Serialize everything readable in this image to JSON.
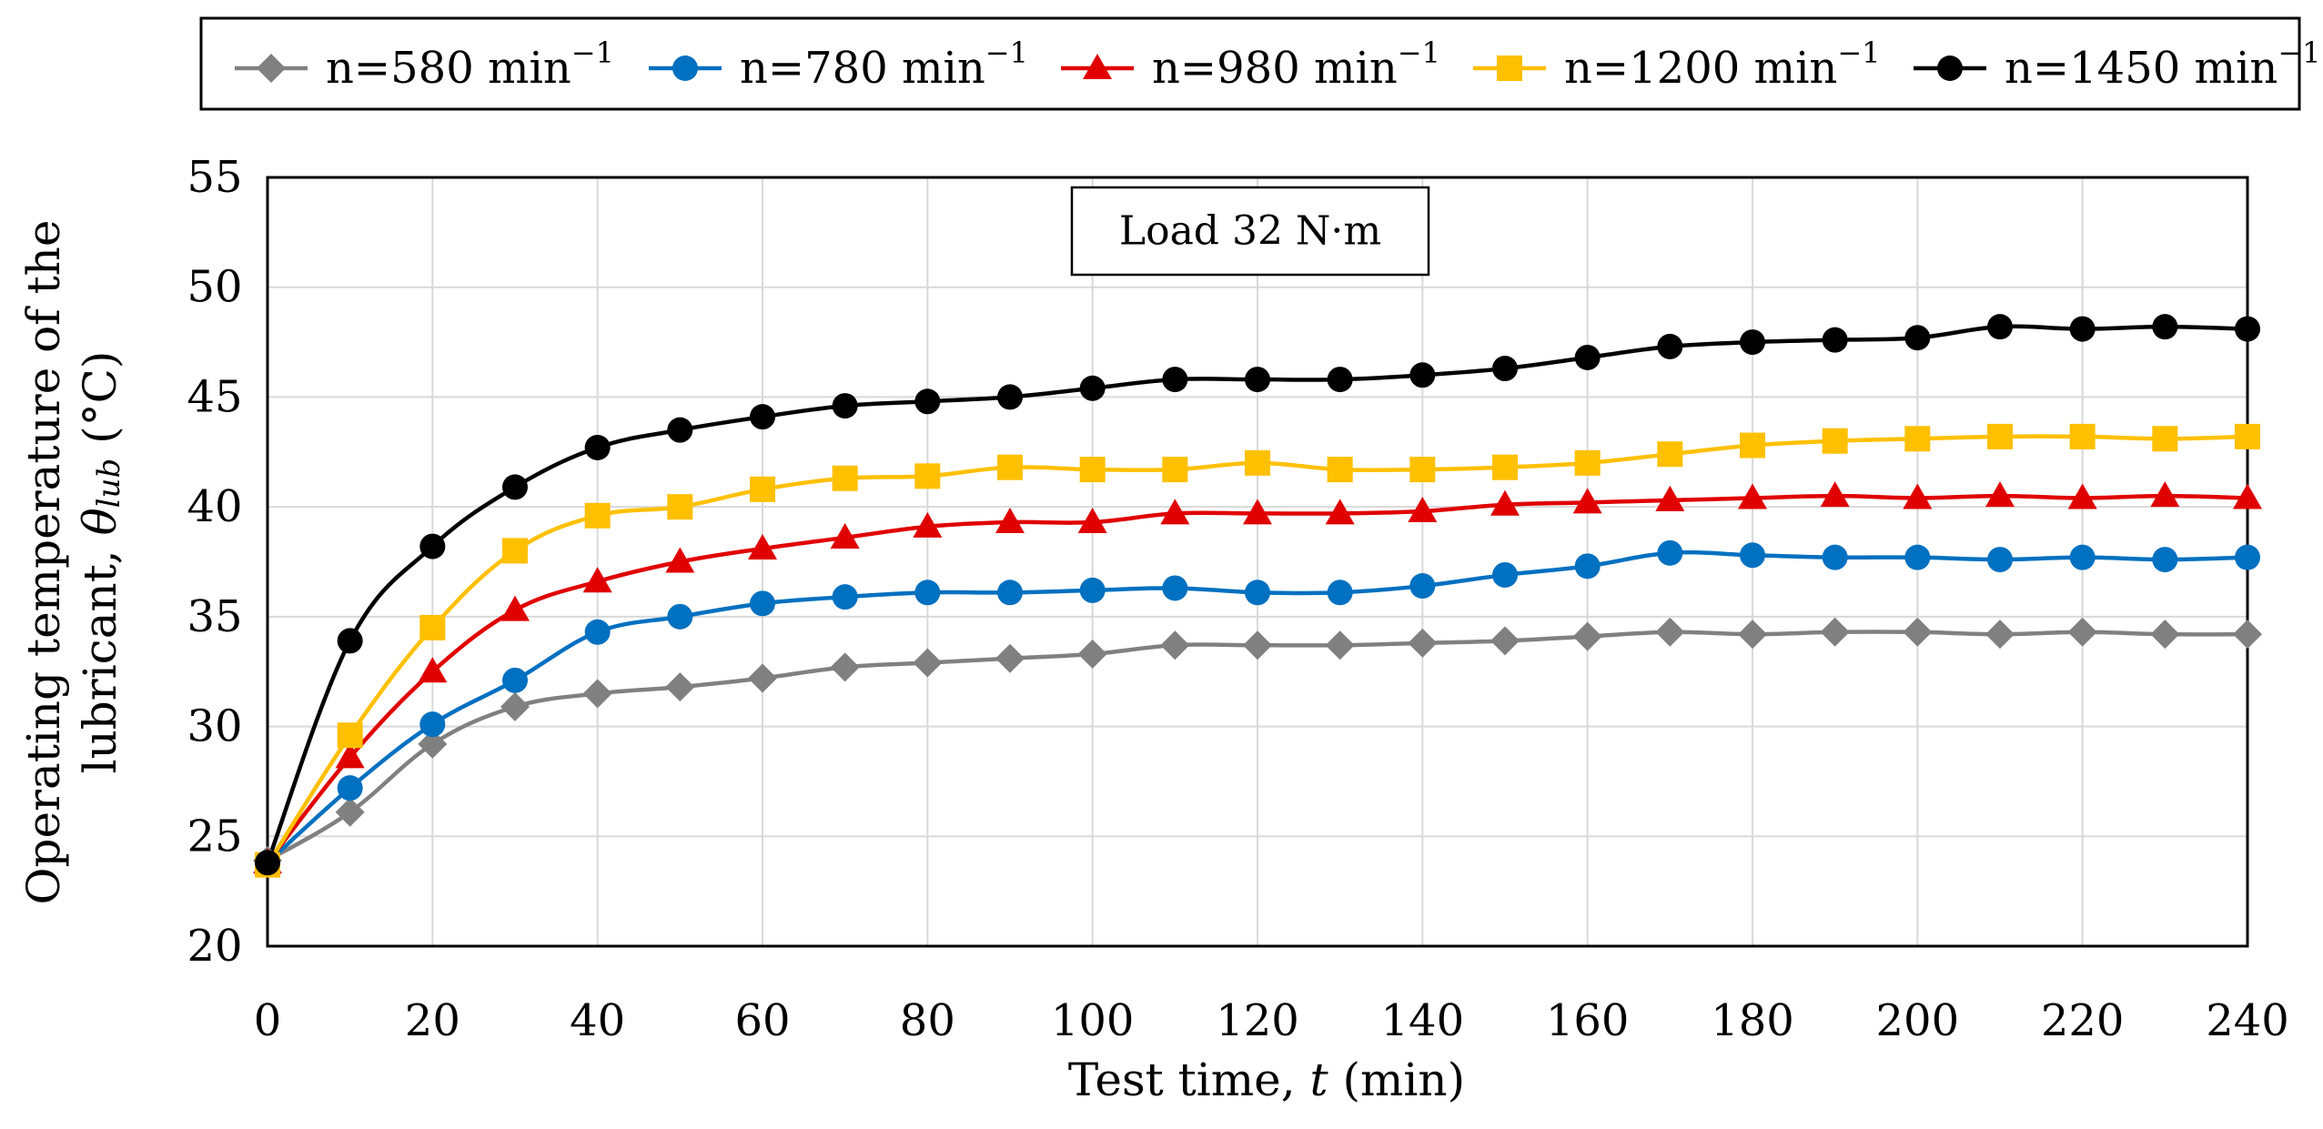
{
  "chart_data": {
    "type": "line",
    "annotation": "Load 32 N·m",
    "xlabel": {
      "prefix": "Test time, ",
      "italic": "t",
      "suffix": " (min)"
    },
    "ylabel": {
      "line1": "Operating temperature of the",
      "line2_prefix": "lubricant, ",
      "line2_symbol": "θ",
      "line2_subscript": "lub",
      "line2_suffix": " (°C)"
    },
    "xlim": [
      0,
      240
    ],
    "ylim": [
      20,
      55
    ],
    "xticks": [
      0,
      20,
      40,
      60,
      80,
      100,
      120,
      140,
      160,
      180,
      200,
      220,
      240
    ],
    "yticks": [
      20,
      25,
      30,
      35,
      40,
      45,
      50,
      55
    ],
    "x": [
      0,
      10,
      20,
      30,
      40,
      50,
      60,
      70,
      80,
      90,
      100,
      110,
      120,
      130,
      140,
      150,
      160,
      170,
      180,
      190,
      200,
      210,
      220,
      230,
      240
    ],
    "grid": true,
    "legend_position": "top",
    "series": [
      {
        "name": "n=580 min",
        "sup": "−1",
        "color": "#808080",
        "marker": "diamond",
        "values": [
          23.9,
          26.1,
          29.2,
          30.9,
          31.5,
          31.8,
          32.2,
          32.7,
          32.9,
          33.1,
          33.3,
          33.7,
          33.7,
          33.7,
          33.8,
          33.9,
          34.1,
          34.3,
          34.2,
          34.3,
          34.3,
          34.2,
          34.3,
          34.2,
          34.2
        ]
      },
      {
        "name": "n=780 min",
        "sup": "−1",
        "color": "#0070C0",
        "marker": "circle",
        "values": [
          23.8,
          27.2,
          30.1,
          32.1,
          34.3,
          35.0,
          35.6,
          35.9,
          36.1,
          36.1,
          36.2,
          36.3,
          36.1,
          36.1,
          36.4,
          36.9,
          37.3,
          37.9,
          37.8,
          37.7,
          37.7,
          37.6,
          37.7,
          37.6,
          37.7
        ]
      },
      {
        "name": "n=980 min",
        "sup": "−1",
        "color": "#E00000",
        "marker": "triangle",
        "values": [
          23.8,
          28.6,
          32.5,
          35.3,
          36.6,
          37.5,
          38.1,
          38.6,
          39.1,
          39.3,
          39.3,
          39.7,
          39.7,
          39.7,
          39.8,
          40.1,
          40.2,
          40.3,
          40.4,
          40.5,
          40.4,
          40.5,
          40.4,
          40.5,
          40.4
        ]
      },
      {
        "name": "n=1200 min",
        "sup": "−1",
        "color": "#FFC000",
        "marker": "square",
        "values": [
          23.7,
          29.6,
          34.5,
          38.0,
          39.6,
          40.0,
          40.8,
          41.3,
          41.4,
          41.8,
          41.7,
          41.7,
          42.0,
          41.7,
          41.7,
          41.8,
          42.0,
          42.4,
          42.8,
          43.0,
          43.1,
          43.2,
          43.2,
          43.1,
          43.2
        ]
      },
      {
        "name": "n=1450 min",
        "sup": "−1",
        "color": "#000000",
        "marker": "circle",
        "values": [
          23.8,
          33.9,
          38.2,
          40.9,
          42.7,
          43.5,
          44.1,
          44.6,
          44.8,
          45.0,
          45.4,
          45.8,
          45.8,
          45.8,
          46.0,
          46.3,
          46.8,
          47.3,
          47.5,
          47.6,
          47.7,
          48.2,
          48.1,
          48.2,
          48.1
        ]
      }
    ]
  }
}
